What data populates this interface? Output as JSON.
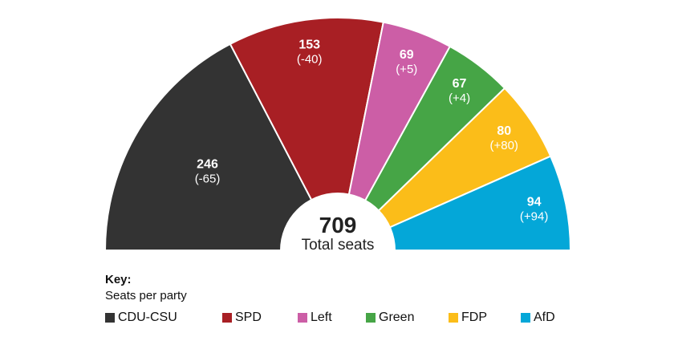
{
  "chart_data": {
    "type": "pie",
    "variant": "semicircle",
    "total": {
      "value": "709",
      "label": "Total seats"
    },
    "parties": [
      {
        "name": "CDU-CSU",
        "seats": 246,
        "seats_label": "246",
        "change": "(-65)",
        "color": "#333333"
      },
      {
        "name": "SPD",
        "seats": 153,
        "seats_label": "153",
        "change": "(-40)",
        "color": "#a81f24"
      },
      {
        "name": "Left",
        "seats": 69,
        "seats_label": "69",
        "change": "(+5)",
        "color": "#cc5ea6"
      },
      {
        "name": "Green",
        "seats": 67,
        "seats_label": "67",
        "change": "(+4)",
        "color": "#46a546"
      },
      {
        "name": "FDP",
        "seats": 80,
        "seats_label": "80",
        "change": "(+80)",
        "color": "#fbbd19"
      },
      {
        "name": "AfD",
        "seats": 94,
        "seats_label": "94",
        "change": "(+94)",
        "color": "#04a7d8"
      }
    ]
  },
  "key": {
    "title": "Key:",
    "subtitle": "Seats per party"
  }
}
